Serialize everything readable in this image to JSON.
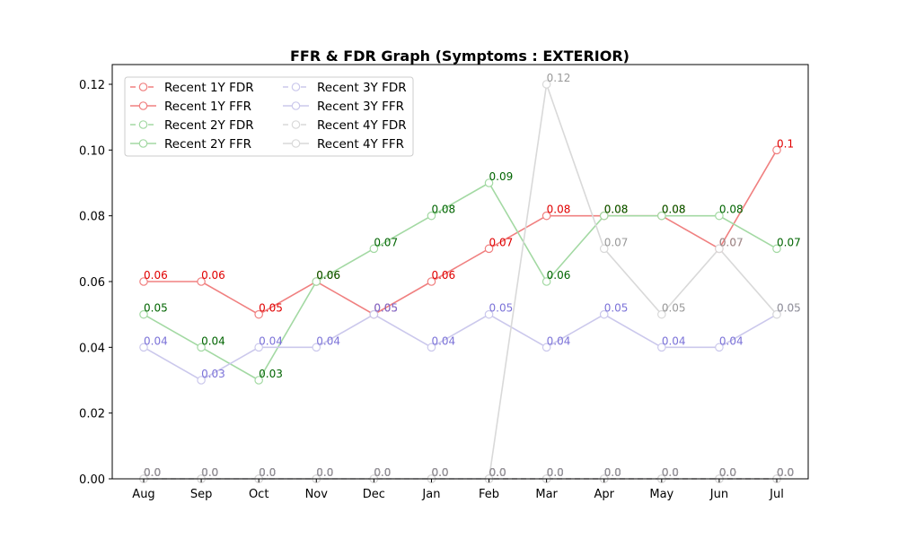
{
  "chart_data": {
    "type": "line",
    "title": "FFR & FDR Graph (Symptoms : EXTERIOR)",
    "xlabel": "",
    "ylabel": "",
    "categories": [
      "Aug",
      "Sep",
      "Oct",
      "Nov",
      "Dec",
      "Jan",
      "Feb",
      "Mar",
      "Apr",
      "May",
      "Jun",
      "Jul"
    ],
    "ylim": [
      0,
      0.126
    ],
    "yticks": [
      "0.00",
      "0.02",
      "0.04",
      "0.06",
      "0.08",
      "0.10",
      "0.12"
    ],
    "ytick_values": [
      0,
      0.02,
      0.04,
      0.06,
      0.08,
      0.1,
      0.12
    ],
    "grid": false,
    "legend_placement": "top-left",
    "series": [
      {
        "name": "Recent 1Y FDR",
        "dashed": true,
        "color": "#f08080",
        "label_color": "#e00000",
        "values": [
          0,
          0,
          0,
          0,
          0,
          0,
          0,
          0,
          0,
          0,
          0,
          0
        ],
        "labels": [
          "0.0",
          "0.0",
          "0.0",
          "0.0",
          "0.0",
          "0.0",
          "0.0",
          "0.0",
          "0.0",
          "0.0",
          "0.0",
          "0.0"
        ]
      },
      {
        "name": "Recent 1Y FFR",
        "dashed": false,
        "color": "#f08080",
        "label_color": "#e00000",
        "values": [
          0.06,
          0.06,
          0.05,
          0.06,
          0.05,
          0.06,
          0.07,
          0.08,
          0.08,
          0.08,
          0.07,
          0.1
        ],
        "labels": [
          "0.06",
          "0.06",
          "0.05",
          "0.06",
          "0.05",
          "0.06",
          "0.07",
          "0.08",
          "0.08",
          "0.08",
          "0.07",
          "0.1"
        ]
      },
      {
        "name": "Recent 2Y FDR",
        "dashed": true,
        "color": "#a3d9a3",
        "label_color": "#006400",
        "values": [
          0,
          0,
          0,
          0,
          0,
          0,
          0,
          0,
          0,
          0,
          0,
          0
        ],
        "labels": [
          "0.0",
          "0.0",
          "0.0",
          "0.0",
          "0.0",
          "0.0",
          "0.0",
          "0.0",
          "0.0",
          "0.0",
          "0.0",
          "0.0"
        ]
      },
      {
        "name": "Recent 2Y FFR",
        "dashed": false,
        "color": "#a3d9a3",
        "label_color": "#006400",
        "values": [
          0.05,
          0.04,
          0.03,
          0.06,
          0.07,
          0.08,
          0.09,
          0.06,
          0.08,
          0.08,
          0.08,
          0.07
        ],
        "labels": [
          "0.05",
          "0.04",
          "0.03",
          "0.06",
          "0.07",
          "0.08",
          "0.09",
          "0.06",
          "0.08",
          "0.08",
          "0.08",
          "0.07"
        ]
      },
      {
        "name": "Recent 3Y FDR",
        "dashed": true,
        "color": "#cbc8ec",
        "label_color": "#7b72d8",
        "values": [
          0,
          0,
          0,
          0,
          0,
          0,
          0,
          0,
          0,
          0,
          0,
          0
        ],
        "labels": [
          "0.0",
          "0.0",
          "0.0",
          "0.0",
          "0.0",
          "0.0",
          "0.0",
          "0.0",
          "0.0",
          "0.0",
          "0.0",
          "0.0"
        ]
      },
      {
        "name": "Recent 3Y FFR",
        "dashed": false,
        "color": "#cbc8ec",
        "label_color": "#7b72d8",
        "values": [
          0.04,
          0.03,
          0.04,
          0.04,
          0.05,
          0.04,
          0.05,
          0.04,
          0.05,
          0.04,
          0.04,
          0.05
        ],
        "labels": [
          "0.04",
          "0.03",
          "0.04",
          "0.04",
          "0.05",
          "0.04",
          "0.05",
          "0.04",
          "0.05",
          "0.04",
          "0.04",
          "0.05"
        ]
      },
      {
        "name": "Recent 4Y FDR",
        "dashed": true,
        "color": "#d9d9d9",
        "label_color": "#999999",
        "values": [
          0,
          0,
          0,
          0,
          0,
          0,
          0,
          0,
          0,
          0,
          0,
          0
        ],
        "labels": [
          "0.0",
          "0.0",
          "0.0",
          "0.0",
          "0.0",
          "0.0",
          "0.0",
          "0.0",
          "0.0",
          "0.0",
          "0.0",
          "0.0"
        ]
      },
      {
        "name": "Recent 4Y FFR",
        "dashed": false,
        "color": "#d9d9d9",
        "label_color": "#999999",
        "values": [
          0,
          0,
          0,
          0,
          0,
          0,
          0,
          0.12,
          0.07,
          0.05,
          0.07,
          0.05
        ],
        "labels": [
          null,
          null,
          null,
          null,
          null,
          null,
          null,
          "0.12",
          "0.07",
          "0.05",
          "0.07",
          "0.05"
        ]
      }
    ]
  }
}
